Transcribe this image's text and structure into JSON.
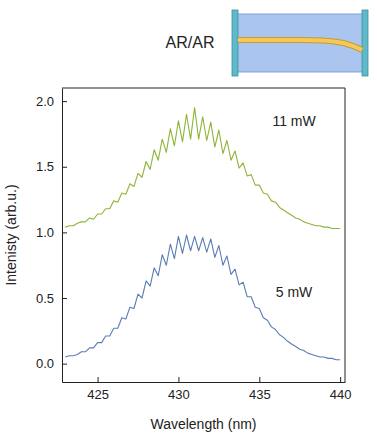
{
  "chart_data": {
    "type": "line",
    "x_label": "Wavelength (nm)",
    "y_label": "Intenisty (arb.u.)",
    "annotations": [
      {
        "text": "AR/AR"
      }
    ],
    "xlim": [
      422.8,
      440.3
    ],
    "ylim": [
      -0.14,
      2.1
    ],
    "xticks": [
      425,
      430,
      435,
      440
    ],
    "yticks": [
      {
        "value": 0,
        "label": "0.0"
      },
      {
        "value": 0.5,
        "label": "0.5"
      },
      {
        "value": 1,
        "label": "1.0"
      },
      {
        "value": 1.5,
        "label": "1.5"
      },
      {
        "value": 2,
        "label": "2.0"
      }
    ],
    "x": [
      423,
      423.25,
      423.5,
      423.75,
      424,
      424.25,
      424.5,
      424.75,
      425,
      425.25,
      425.5,
      425.75,
      426,
      426.25,
      426.5,
      426.75,
      427,
      427.25,
      427.5,
      427.75,
      428,
      428.25,
      428.5,
      428.75,
      429,
      429.25,
      429.5,
      429.75,
      430,
      430.25,
      430.5,
      430.75,
      431,
      431.25,
      431.5,
      431.75,
      432,
      432.25,
      432.5,
      432.75,
      433,
      433.25,
      433.5,
      433.75,
      434,
      434.25,
      434.5,
      434.75,
      435,
      435.25,
      435.5,
      435.75,
      436,
      436.25,
      436.5,
      436.75,
      437,
      437.25,
      437.5,
      437.75,
      438,
      438.25,
      438.5,
      438.75,
      439,
      439.25,
      439.5,
      439.75,
      440
    ],
    "series": [
      {
        "name": "11 mW",
        "color": "#8fb43a",
        "values": [
          1.04,
          1.05,
          1.05,
          1.07,
          1.08,
          1.08,
          1.11,
          1.1,
          1.14,
          1.14,
          1.18,
          1.18,
          1.24,
          1.23,
          1.3,
          1.29,
          1.37,
          1.35,
          1.45,
          1.42,
          1.54,
          1.48,
          1.63,
          1.55,
          1.71,
          1.61,
          1.79,
          1.66,
          1.85,
          1.69,
          1.9,
          1.71,
          1.95,
          1.71,
          1.88,
          1.7,
          1.84,
          1.65,
          1.78,
          1.6,
          1.7,
          1.55,
          1.62,
          1.49,
          1.53,
          1.43,
          1.44,
          1.36,
          1.36,
          1.3,
          1.29,
          1.24,
          1.23,
          1.19,
          1.17,
          1.15,
          1.13,
          1.11,
          1.1,
          1.08,
          1.07,
          1.06,
          1.05,
          1.05,
          1.04,
          1.04,
          1.03,
          1.03,
          1.03
        ]
      },
      {
        "name": "5 mW",
        "color": "#5a7cb6",
        "values": [
          0.05,
          0.06,
          0.06,
          0.07,
          0.09,
          0.09,
          0.12,
          0.12,
          0.16,
          0.16,
          0.21,
          0.21,
          0.27,
          0.27,
          0.35,
          0.34,
          0.43,
          0.42,
          0.53,
          0.5,
          0.63,
          0.59,
          0.73,
          0.67,
          0.83,
          0.75,
          0.91,
          0.8,
          0.97,
          0.84,
          0.98,
          0.86,
          0.97,
          0.86,
          0.96,
          0.85,
          0.95,
          0.81,
          0.9,
          0.75,
          0.82,
          0.68,
          0.72,
          0.6,
          0.62,
          0.51,
          0.51,
          0.43,
          0.42,
          0.35,
          0.33,
          0.28,
          0.26,
          0.22,
          0.2,
          0.17,
          0.15,
          0.13,
          0.11,
          0.1,
          0.08,
          0.07,
          0.06,
          0.05,
          0.05,
          0.04,
          0.04,
          0.03,
          0.03
        ]
      }
    ]
  }
}
